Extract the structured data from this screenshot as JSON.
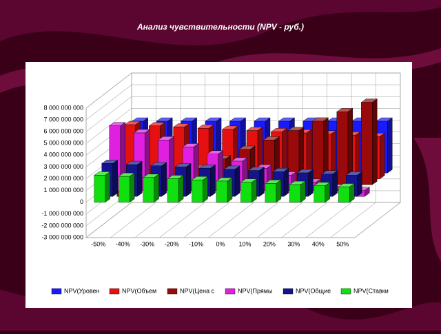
{
  "chart_data": {
    "type": "bar3d",
    "title": "Анализ чувствительности (NPV - руб.)",
    "categories": [
      "-50%",
      "-40%",
      "-30%",
      "-20%",
      "-10%",
      "0%",
      "10%",
      "20%",
      "30%",
      "40%",
      "50%"
    ],
    "series": [
      {
        "name": "NPV(Уровен",
        "color": "#1a1aff",
        "values": [
          4400000000,
          4400000000,
          4400000000,
          4400000000,
          4400000000,
          4400000000,
          4400000000,
          4400000000,
          4400000000,
          4400000000,
          4400000000
        ]
      },
      {
        "name": "NPV(Объем",
        "color": "#e51010",
        "values": [
          4600000000,
          4500000000,
          4400000000,
          4300000000,
          4200000000,
          4100000000,
          4000000000,
          3900000000,
          3800000000,
          3700000000,
          3600000000
        ]
      },
      {
        "name": "NPV(Цена с",
        "color": "#9a0a0a",
        "values": [
          -1000000000,
          -200000000,
          600000000,
          1400000000,
          2200000000,
          3000000000,
          3800000000,
          4600000000,
          5400000000,
          6200000000,
          7000000000
        ]
      },
      {
        "name": "NPV(Прямы",
        "color": "#e020e0",
        "values": [
          5500000000,
          4900000000,
          4300000000,
          3700000000,
          3100000000,
          2500000000,
          1900000000,
          1300000000,
          700000000,
          100000000,
          -500000000
        ]
      },
      {
        "name": "NPV(Общие",
        "color": "#14148c",
        "values": [
          2800000000,
          2700000000,
          2600000000,
          2500000000,
          2400000000,
          2300000000,
          2200000000,
          2100000000,
          2000000000,
          1900000000,
          1800000000
        ]
      },
      {
        "name": "NPV(Ставки",
        "color": "#10e010",
        "values": [
          2300000000,
          2200000000,
          2100000000,
          2000000000,
          1900000000,
          1800000000,
          1700000000,
          1600000000,
          1500000000,
          1400000000,
          1300000000
        ]
      }
    ],
    "ylim": [
      -3000000000,
      8000000000
    ],
    "yticks": [
      {
        "value": -3000000000,
        "label": "-3 000 000 000"
      },
      {
        "value": -2000000000,
        "label": "-2 000 000 000"
      },
      {
        "value": -1000000000,
        "label": "-1 000 000 000"
      },
      {
        "value": 0,
        "label": "0"
      },
      {
        "value": 1000000000,
        "label": "1 000 000 000"
      },
      {
        "value": 2000000000,
        "label": "2 000 000 000"
      },
      {
        "value": 3000000000,
        "label": "3 000 000 000"
      },
      {
        "value": 4000000000,
        "label": "4 000 000 000"
      },
      {
        "value": 5000000000,
        "label": "5 000 000 000"
      },
      {
        "value": 6000000000,
        "label": "6 000 000 000"
      },
      {
        "value": 7000000000,
        "label": "7 000 000 000"
      },
      {
        "value": 8000000000,
        "label": "8 000 000 000"
      }
    ],
    "grid": true,
    "legend": "bottom"
  }
}
